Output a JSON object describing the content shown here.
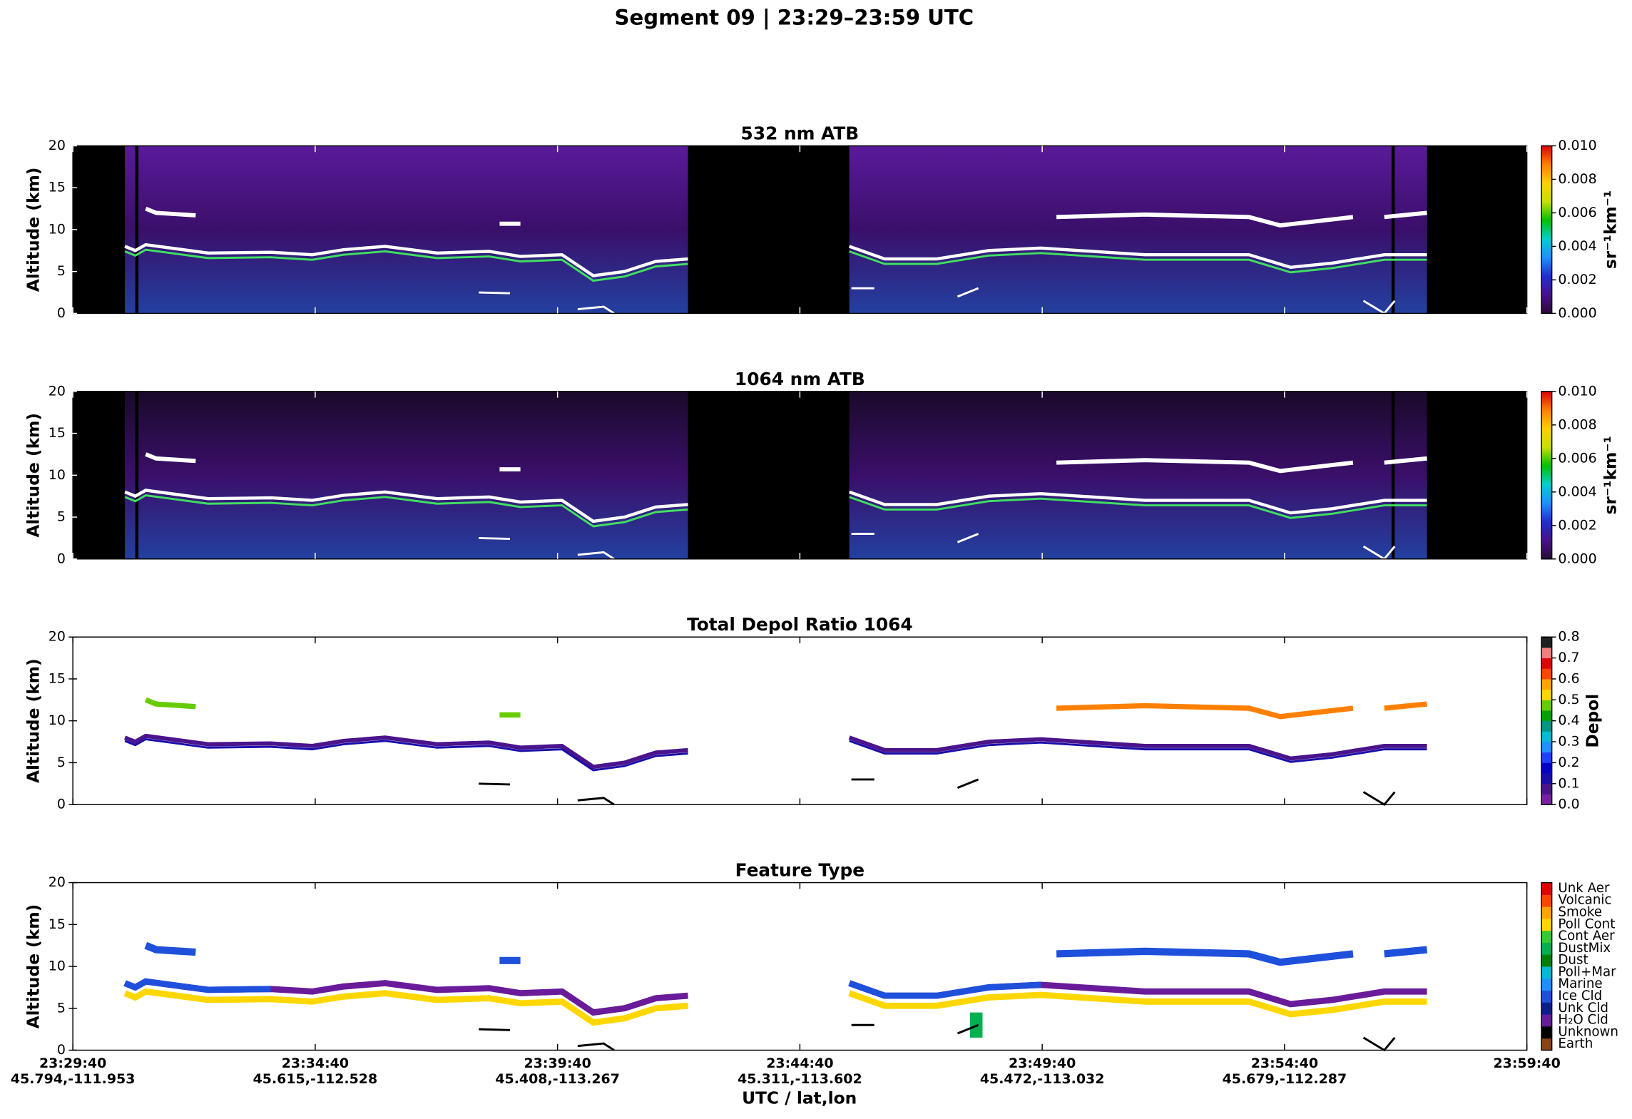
{
  "title": "Segment 09  |  23:29–23:59 UTC",
  "x_label": "UTC / lat,lon",
  "xticks": [
    {
      "time": "23:29:40",
      "latlon": "45.794,-111.953"
    },
    {
      "time": "23:34:40",
      "latlon": "45.615,-112.528"
    },
    {
      "time": "23:39:40",
      "latlon": "45.408,-113.267"
    },
    {
      "time": "23:44:40",
      "latlon": "45.311,-113.602"
    },
    {
      "time": "23:49:40",
      "latlon": "45.472,-113.032"
    },
    {
      "time": "23:54:40",
      "latlon": "45.679,-112.287"
    },
    {
      "time": "23:59:40"
    }
  ],
  "chart_data": [
    {
      "type": "heatmap",
      "title": "532 nm ATB",
      "ylabel": "Altitude (km)",
      "ylim": [
        0,
        20
      ],
      "yticks": [
        0,
        5,
        10,
        15,
        20
      ],
      "colorbar": {
        "label": "sr⁻¹km⁻¹",
        "lim": [
          0,
          0.01
        ],
        "ticks": [
          {
            "value": 0,
            "label": "0.000"
          },
          0.002,
          0.004,
          0.006,
          0.008,
          {
            "value": 0.01,
            "label": "0.010"
          }
        ],
        "colors": [
          "#2a0a3a",
          "#4b0f8c",
          "#1f2fd0",
          "#1e90ff",
          "#00d0d0",
          "#00c000",
          "#c8e000",
          "#ffd000",
          "#ff8000",
          "#e00000"
        ]
      }
    },
    {
      "type": "heatmap",
      "title": "1064 nm ATB",
      "ylabel": "Altitude (km)",
      "ylim": [
        0,
        20
      ],
      "yticks": [
        0,
        5,
        10,
        15,
        20
      ],
      "colorbar": {
        "label": "sr⁻¹km⁻¹",
        "lim": [
          0,
          0.01
        ],
        "ticks": [
          {
            "value": 0,
            "label": "0.000"
          },
          0.002,
          0.004,
          0.006,
          0.008,
          {
            "value": 0.01,
            "label": "0.010"
          }
        ],
        "colors": [
          "#2a0a3a",
          "#4b0f8c",
          "#1f2fd0",
          "#1e90ff",
          "#00d0d0",
          "#00c000",
          "#c8e000",
          "#ffd000",
          "#ff8000",
          "#e00000"
        ]
      }
    },
    {
      "type": "heatmap",
      "title": "Total Depol Ratio 1064",
      "ylabel": "Altitude (km)",
      "ylim": [
        0,
        20
      ],
      "yticks": [
        0,
        5,
        10,
        15,
        20
      ],
      "colorbar": {
        "label": "Depol",
        "lim": [
          0,
          0.8
        ],
        "ticks": [
          {
            "value": 0,
            "label": "0.0"
          },
          0.1,
          0.2,
          0.3,
          0.4,
          0.5,
          0.6,
          0.7,
          0.8
        ],
        "steps": [
          "#7b1fa2",
          "#4a148c",
          "#1a0dab",
          "#0000cd",
          "#1e40ff",
          "#1e90ff",
          "#00bcd4",
          "#009688",
          "#00a000",
          "#66cc00",
          "#ffd700",
          "#ffa500",
          "#ff4500",
          "#e00000",
          "#f08080",
          "#202020"
        ]
      }
    },
    {
      "type": "classes",
      "title": "Feature Type",
      "ylabel": "Altitude (km)",
      "ylim": [
        0,
        20
      ],
      "yticks": [
        0,
        5,
        10,
        15,
        20
      ],
      "colorbar": {
        "classes": [
          {
            "label": "Earth",
            "color": "#8b4513"
          },
          {
            "label": "Unknown",
            "color": "#000000"
          },
          {
            "label": "H₂O Cld",
            "color": "#6a1b9a"
          },
          {
            "label": "Unk Cld",
            "color": "#0a1e8c"
          },
          {
            "label": "Ice Cld",
            "color": "#1e50dc"
          },
          {
            "label": "Marine",
            "color": "#1e90ff"
          },
          {
            "label": "Poll+Mar",
            "color": "#00bcd4"
          },
          {
            "label": "Dust",
            "color": "#008000"
          },
          {
            "label": "DustMix",
            "color": "#00b050"
          },
          {
            "label": "Cont Aer",
            "color": "#33cc33"
          },
          {
            "label": "Poll Cont",
            "color": "#ffd700"
          },
          {
            "label": "Smoke",
            "color": "#ffa500"
          },
          {
            "label": "Volcanic",
            "color": "#ff4500"
          },
          {
            "label": "Unk Aer",
            "color": "#e00000"
          }
        ]
      }
    }
  ]
}
